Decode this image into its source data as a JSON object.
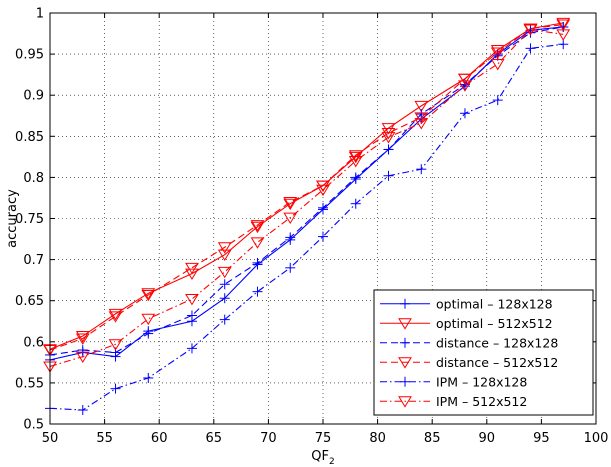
{
  "chart_data": {
    "type": "line",
    "title": "",
    "xlabel": "QF",
    "xlabel_sub": "2",
    "ylabel": "accuracy",
    "xlim": [
      50,
      100
    ],
    "ylim": [
      0.5,
      1
    ],
    "xticks": [
      50,
      55,
      60,
      65,
      70,
      75,
      80,
      85,
      90,
      95,
      100
    ],
    "yticks": [
      0.5,
      0.55,
      0.6,
      0.65,
      0.7,
      0.75,
      0.8,
      0.85,
      0.9,
      0.95,
      1
    ],
    "ytick_labels": [
      "0.5",
      "0.55",
      "0.6",
      "0.65",
      "0.7",
      "0.75",
      "0.8",
      "0.85",
      "0.9",
      "0.95",
      "1"
    ],
    "grid": true,
    "legend_position": "bottom-right",
    "x": [
      50,
      53,
      56,
      59,
      63,
      66,
      69,
      72,
      75,
      78,
      81,
      84,
      88,
      91,
      94,
      97
    ],
    "series": [
      {
        "name": "optimal – 128x128",
        "color": "#0000ff",
        "line_style": "solid",
        "marker": "plus",
        "values": [
          0.578,
          0.587,
          0.582,
          0.613,
          0.625,
          0.653,
          0.694,
          0.724,
          0.761,
          0.798,
          0.834,
          0.871,
          0.911,
          0.95,
          0.979,
          0.983
        ]
      },
      {
        "name": "optimal – 512x512",
        "color": "#ff0000",
        "line_style": "solid",
        "marker": "triangle-down",
        "values": [
          0.591,
          0.607,
          0.634,
          0.659,
          0.683,
          0.706,
          0.74,
          0.768,
          0.79,
          0.825,
          0.86,
          0.887,
          0.92,
          0.955,
          0.981,
          0.988
        ]
      },
      {
        "name": "distance – 128x128",
        "color": "#0000ff",
        "line_style": "dashed",
        "marker": "plus",
        "values": [
          0.584,
          0.59,
          0.587,
          0.61,
          0.632,
          0.67,
          0.696,
          0.727,
          0.763,
          0.8,
          0.834,
          0.877,
          0.913,
          0.948,
          0.976,
          0.983
        ]
      },
      {
        "name": "distance – 512x512",
        "color": "#ff0000",
        "line_style": "dashed",
        "marker": "triangle-down",
        "values": [
          0.59,
          0.604,
          0.631,
          0.657,
          0.69,
          0.715,
          0.742,
          0.77,
          0.79,
          0.827,
          0.854,
          0.873,
          0.92,
          0.952,
          0.981,
          0.986
        ]
      },
      {
        "name": "IPM – 128x128",
        "color": "#0000ff",
        "line_style": "dashdot",
        "marker": "plus",
        "values": [
          0.519,
          0.517,
          0.543,
          0.556,
          0.592,
          0.627,
          0.661,
          0.69,
          0.728,
          0.768,
          0.802,
          0.81,
          0.878,
          0.894,
          0.957,
          0.962
        ]
      },
      {
        "name": "IPM – 512x512",
        "color": "#ff0000",
        "line_style": "dashdot",
        "marker": "triangle-down",
        "values": [
          0.57,
          0.582,
          0.597,
          0.628,
          0.652,
          0.685,
          0.721,
          0.751,
          0.785,
          0.82,
          0.849,
          0.866,
          0.912,
          0.938,
          0.98,
          0.974
        ]
      }
    ]
  }
}
